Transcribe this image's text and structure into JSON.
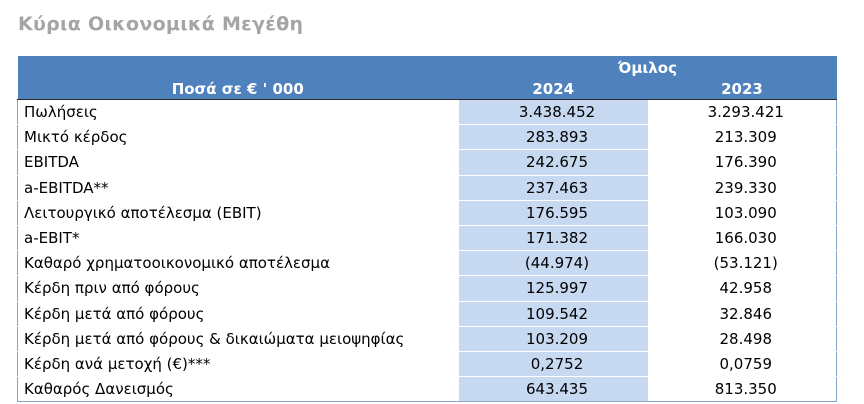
{
  "title": "Κύρια Οικονομικά Μεγέθη",
  "table": {
    "group_header": "Όμιλος",
    "label_header": "Ποσά  σε € ' 000",
    "year_1": "2024",
    "year_2": "2023",
    "rows": [
      {
        "label": "Πωλήσεις",
        "v2024": "3.438.452",
        "v2023": "3.293.421"
      },
      {
        "label": "Μικτό κέρδος",
        "v2024": "283.893",
        "v2023": "213.309"
      },
      {
        "label": "EBITDA",
        "v2024": "242.675",
        "v2023": "176.390"
      },
      {
        "label": "a-EBITDA**",
        "v2024": "237.463",
        "v2023": "239.330"
      },
      {
        "label": "Λειτουργικό αποτέλεσμα (EBIT)",
        "v2024": "176.595",
        "v2023": "103.090"
      },
      {
        "label": "a-EBIT*",
        "v2024": "171.382",
        "v2023": "166.030"
      },
      {
        "label": "Καθαρό χρηματοοικονομικό αποτέλεσμα",
        "v2024": "(44.974)",
        "v2023": "(53.121)"
      },
      {
        "label": "Κέρδη πριν από φόρους",
        "v2024": "125.997",
        "v2023": "42.958"
      },
      {
        "label": "Κέρδη μετά από φόρους",
        "v2024": "109.542",
        "v2023": "32.846"
      },
      {
        "label": "Κέρδη μετά από φόρους & δικαιώματα μειοψηφίας",
        "v2024": "103.209",
        "v2023": "28.498"
      },
      {
        "label": "Κέρδη ανά μετοχή (€)***",
        "v2024": "0,2752",
        "v2023": "0,0759"
      },
      {
        "label": "Καθαρός Δανεισμός",
        "v2024": "643.435",
        "v2023": "813.350"
      }
    ]
  }
}
